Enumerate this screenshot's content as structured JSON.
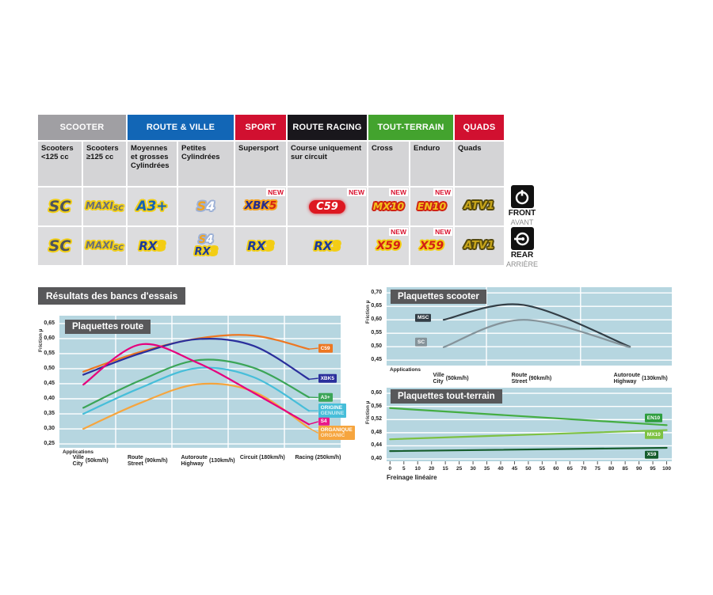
{
  "section_title": "Résultats des bancs d'essais",
  "table": {
    "new_label": "NEW",
    "categories": [
      {
        "label": "SCOOTER",
        "color": "#a09fa3",
        "span": 2
      },
      {
        "label": "ROUTE & VILLE",
        "color": "#1266b6",
        "span": 2
      },
      {
        "label": "SPORT",
        "color": "#d11030",
        "span": 1
      },
      {
        "label": "ROUTE RACING",
        "color": "#19171c",
        "span": 1
      },
      {
        "label": "TOUT-TERRAIN",
        "color": "#43a32e",
        "span": 2
      },
      {
        "label": "QUADS",
        "color": "#d11030",
        "span": 1
      }
    ],
    "subheaders": [
      "Scooters <125 cc",
      "Scooters ≥125 cc",
      "Moyennes et grosses Cylindrées",
      "Petites Cylindrées",
      "Supersport",
      "Course uniquement sur circuit",
      "Cross",
      "Enduro",
      "Quads"
    ],
    "rows": [
      {
        "side": "front",
        "cells": [
          {
            "logos": [
              "SC"
            ],
            "new": false
          },
          {
            "logos": [
              "MAXI-SC"
            ],
            "new": false
          },
          {
            "logos": [
              "A3+"
            ],
            "new": false
          },
          {
            "logos": [
              "S4"
            ],
            "new": false
          },
          {
            "logos": [
              "XBK5"
            ],
            "new": true
          },
          {
            "logos": [
              "C59"
            ],
            "new": true
          },
          {
            "logos": [
              "MX10"
            ],
            "new": true
          },
          {
            "logos": [
              "EN10"
            ],
            "new": true
          },
          {
            "logos": [
              "ATV1"
            ],
            "new": false
          }
        ]
      },
      {
        "side": "rear",
        "cells": [
          {
            "logos": [
              "SC"
            ],
            "new": false
          },
          {
            "logos": [
              "MAXI-SC"
            ],
            "new": false
          },
          {
            "logos": [
              "RX3"
            ],
            "new": false
          },
          {
            "logos": [
              "S4",
              "RX3"
            ],
            "new": false
          },
          {
            "logos": [
              "RX3"
            ],
            "new": false
          },
          {
            "logos": [
              "RX3"
            ],
            "new": false
          },
          {
            "logos": [
              "X59"
            ],
            "new": true
          },
          {
            "logos": [
              "X59"
            ],
            "new": true
          },
          {
            "logos": [
              "ATV1"
            ],
            "new": false
          }
        ]
      }
    ]
  },
  "position_markers": {
    "front": {
      "en": "FRONT",
      "fr": "AVANT"
    },
    "rear": {
      "en": "REAR",
      "fr": "ARRIÈRE"
    }
  },
  "chart_data": [
    {
      "id": "route",
      "type": "line",
      "title": "Plaquettes route",
      "ylabel": "Friction µ",
      "applications_label": "Applications",
      "ylim": [
        0.237,
        0.676
      ],
      "grid": true,
      "legend_position": "right",
      "y_ticks": [
        {
          "label": "0,65",
          "value": 0.65
        },
        {
          "label": "0,60",
          "value": 0.6
        },
        {
          "label": "0,55",
          "value": 0.55
        },
        {
          "label": "0,50",
          "value": 0.5
        },
        {
          "label": "0,45",
          "value": 0.45
        },
        {
          "label": "0,40",
          "value": 0.4
        },
        {
          "label": "0,35",
          "value": 0.35
        },
        {
          "label": "0,30",
          "value": 0.3
        },
        {
          "label": "0,25",
          "value": 0.25
        }
      ],
      "x_categories": [
        {
          "fr": "Ville",
          "en": "City",
          "speed": "(50km/h)"
        },
        {
          "fr": "Route",
          "en": "Street",
          "speed": "(90km/h)"
        },
        {
          "fr": "Autoroute",
          "en": "Highway",
          "speed": "(130km/h)"
        },
        {
          "fr": "Circuit",
          "en": "",
          "speed": "(180km/h)"
        },
        {
          "fr": "Racing",
          "en": "",
          "speed": "(250km/h)"
        }
      ],
      "series": [
        {
          "name": "C59",
          "color": "#ed7722",
          "values": [
            0.49,
            0.555,
            0.6,
            0.61,
            0.565
          ],
          "label": {
            "text": "C59",
            "bg": "#ed7722",
            "x": 0.92,
            "y": 0.568,
            "leader": true
          }
        },
        {
          "name": "XBK5",
          "color": "#2a2f9c",
          "values": [
            0.48,
            0.55,
            0.598,
            0.576,
            0.465
          ],
          "label": {
            "text": "XBK5",
            "bg": "#2a2f9c",
            "x": 0.92,
            "y": 0.468,
            "leader": true
          }
        },
        {
          "name": "A3+",
          "color": "#3ba557",
          "values": [
            0.37,
            0.46,
            0.528,
            0.503,
            0.405
          ],
          "label": {
            "text": "A3+",
            "bg": "#3ba557",
            "x": 0.92,
            "y": 0.404,
            "leader": true
          }
        },
        {
          "name": "ORIGINE (GENUINE)",
          "color": "#47bed9",
          "values": [
            0.35,
            0.435,
            0.502,
            0.472,
            0.36
          ],
          "label": {
            "text": "ORIGINE\nGENUINE",
            "bg": "#47bed9",
            "x": 0.92,
            "y": 0.36,
            "leader": true
          }
        },
        {
          "name": "ORGANIQUE (ORGANIC)",
          "color": "#f6a53e",
          "values": [
            0.3,
            0.385,
            0.448,
            0.424,
            0.303
          ],
          "label": {
            "text": "ORGANIQUE\nORGANIC",
            "bg": "#f6a53e",
            "x": 0.92,
            "y": 0.286,
            "leader": true
          }
        },
        {
          "name": "S4",
          "color": "#e5007d",
          "values": [
            0.447,
            0.58,
            0.52,
            0.42,
            0.315
          ],
          "label": {
            "text": "S4",
            "bg": "#ea1889",
            "x": 0.92,
            "y": 0.324,
            "leader": true
          }
        }
      ]
    },
    {
      "id": "scooter",
      "type": "line",
      "title": "Plaquettes scooter",
      "ylabel": "Friction µ",
      "applications_label": "Applications",
      "ylim": [
        0.43,
        0.721
      ],
      "grid": true,
      "legend_position": "left",
      "y_ticks": [
        {
          "label": "0,70",
          "value": 0.7
        },
        {
          "label": "0,65",
          "value": 0.65
        },
        {
          "label": "0,60",
          "value": 0.6
        },
        {
          "label": "0,55",
          "value": 0.55
        },
        {
          "label": "0,50",
          "value": 0.5
        },
        {
          "label": "0,45",
          "value": 0.45
        }
      ],
      "x_categories": [
        {
          "fr": "Ville",
          "en": "City",
          "speed": "(50km/h)"
        },
        {
          "fr": "Route",
          "en": "Street",
          "speed": "(90km/h)"
        },
        {
          "fr": "Autoroute",
          "en": "Highway",
          "speed": "(130km/h)"
        }
      ],
      "series": [
        {
          "name": "MSC",
          "color": "#333e46",
          "values": [
            0.6,
            0.655,
            0.5
          ],
          "label": {
            "text": "MSC",
            "bg": "#333e46",
            "x": 0.1,
            "y": 0.607,
            "leader": false
          }
        },
        {
          "name": "SC",
          "color": "#85939a",
          "values": [
            0.498,
            0.6,
            0.498
          ],
          "label": {
            "text": "SC",
            "bg": "#85939a",
            "x": 0.1,
            "y": 0.518,
            "leader": false
          }
        }
      ]
    },
    {
      "id": "terrain",
      "type": "line",
      "title": "Plaquettes tout-terrain",
      "ylabel": "Friction µ",
      "xlabel": "Freinage linéaire",
      "ylim": [
        0.393,
        0.617
      ],
      "grid": true,
      "legend_position": "right",
      "y_ticks": [
        {
          "label": "0,60",
          "value": 0.6
        },
        {
          "label": "0,56",
          "value": 0.56
        },
        {
          "label": "0,52",
          "value": 0.52
        },
        {
          "label": "0,48",
          "value": 0.48
        },
        {
          "label": "0,44",
          "value": 0.44
        },
        {
          "label": "0,40",
          "value": 0.4
        }
      ],
      "x_ticks": [
        "0",
        "5",
        "10",
        "20",
        "15",
        "25",
        "30",
        "35",
        "40",
        "45",
        "50",
        "55",
        "60",
        "65",
        "70",
        "75",
        "80",
        "85",
        "90",
        "95",
        "100"
      ],
      "series": [
        {
          "name": "EN10",
          "color": "#44ad42",
          "values": [
            0.555,
            0.503
          ],
          "label": {
            "text": "EN10",
            "bg": "#2f9e3f",
            "x": 0.905,
            "y": 0.525,
            "leader": false
          }
        },
        {
          "name": "MX10",
          "color": "#7dc142",
          "values": [
            0.46,
            0.488
          ],
          "label": {
            "text": "MX10",
            "bg": "#7dc142",
            "x": 0.905,
            "y": 0.474,
            "leader": false
          }
        },
        {
          "name": "X59",
          "color": "#155c2c",
          "values": [
            0.424,
            0.434
          ],
          "label": {
            "text": "X59",
            "bg": "#155c2c",
            "x": 0.905,
            "y": 0.413,
            "leader": false
          }
        }
      ]
    }
  ],
  "colors": {
    "plot_background": "#b6d6e0",
    "gridline": "#ffffff",
    "title_box": "#58585a",
    "new_badge": "#d9122f"
  }
}
